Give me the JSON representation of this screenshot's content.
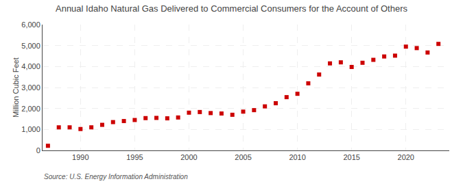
{
  "chart_data": {
    "type": "scatter",
    "title": "Annual Idaho Natural Gas Delivered to Commercial Consumers for the Account of Others",
    "ylabel": "Million Cubic Feet",
    "annotations": [
      "Source: U.S. Energy Information Administration"
    ],
    "x": [
      1987,
      1988,
      1989,
      1990,
      1991,
      1992,
      1993,
      1994,
      1995,
      1996,
      1997,
      1998,
      1999,
      2000,
      2001,
      2002,
      2003,
      2004,
      2005,
      2006,
      2007,
      2008,
      2009,
      2010,
      2011,
      2012,
      2013,
      2014,
      2015,
      2016,
      2017,
      2018,
      2019,
      2020,
      2021,
      2022,
      2023
    ],
    "values": [
      220,
      1100,
      1100,
      1020,
      1100,
      1220,
      1350,
      1400,
      1450,
      1540,
      1550,
      1530,
      1570,
      1800,
      1830,
      1780,
      1760,
      1700,
      1850,
      1920,
      2100,
      2250,
      2540,
      2700,
      3200,
      3620,
      4150,
      4200,
      3980,
      4180,
      4320,
      4480,
      4520,
      4950,
      4880,
      4670,
      5080
    ],
    "color": "#cc0000",
    "marker": "square",
    "xlim": [
      1986.5,
      2024
    ],
    "ylim": [
      0,
      6000
    ],
    "xticks": [
      1990,
      1995,
      2000,
      2005,
      2010,
      2015,
      2020
    ],
    "yticks": [
      0,
      {
        "value": 1000,
        "label": "1,000"
      },
      {
        "value": 2000,
        "label": "2,000"
      },
      {
        "value": 3000,
        "label": "3,000"
      },
      {
        "value": 4000,
        "label": "4,000"
      },
      {
        "value": 5000,
        "label": "5,000"
      },
      {
        "value": 6000,
        "label": "6,000"
      }
    ],
    "grid": true
  }
}
